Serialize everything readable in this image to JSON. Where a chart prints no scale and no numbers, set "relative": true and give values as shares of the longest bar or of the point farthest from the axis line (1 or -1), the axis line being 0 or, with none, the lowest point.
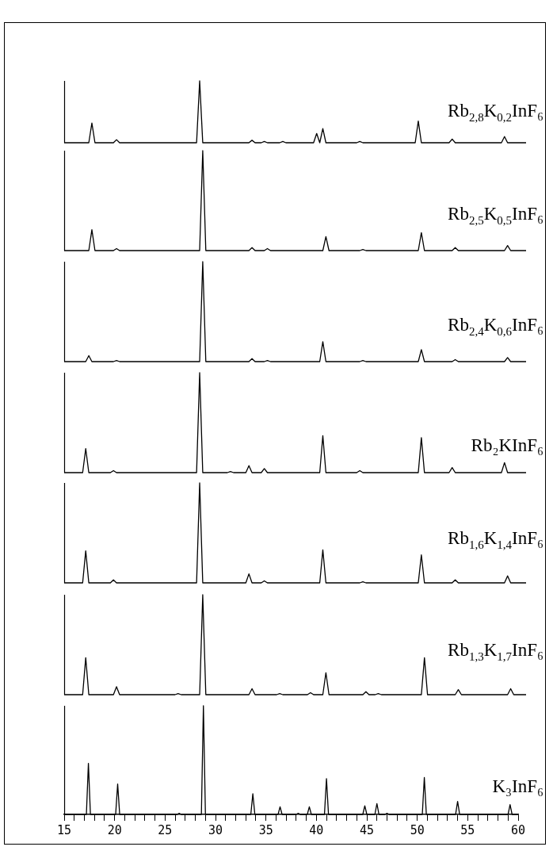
{
  "chart_data": [
    {
      "type": "line",
      "title": "Rb$_{2,8}$K$_{0,2}$InF₆",
      "relative": true,
      "color": "#000000",
      "tick_labels": false,
      "categories": [
        null,
        null,
        null,
        null,
        null,
        null,
        null,
        null,
        null,
        null,
        null,
        null,
        null,
        null,
        null,
        null,
        null,
        null,
        null,
        null,
        null,
        null,
        null,
        null,
        null,
        null,
        null,
        null,
        null,
        null,
        null,
        null,
        null,
        null,
        null,
        null,
        null,
        null,
        null,
        null,
        null,
        null,
        null,
        null,
        null,
        null,
        null,
        null,
        null,
        null,
        null,
        null,
        null,
        null,
        null,
        null,
        null,
        null,
        null,
        null,
        null,
        null,
        null,
        null,
        null,
        null,
        null,
        null,
        null,
        null,
        null,
        null,
        null,
        null,
        null,
        null,
        null,
        null,
        null,
        null,
        null,
        null,
        null,
        null,
        null,
        null,
        null,
        null,
        null,
        null,
        null,
        null,
        null,
        null,
        null,
        null,
        null,
        null,
        null,
        null,
        null,
        null,
        null,
        null,
        null,
        null,
        null,
        null,
        null,
        null,
        null,
        null,
        null,
        null,
        null,
        null,
        null,
        null,
        null,
        null,
        null,
        null,
        null,
        null,
        null,
        null,
        null,
        null,
        null,
        null,
        null,
        null,
        null,
        null,
        null,
        null,
        null,
        null,
        null,
        null,
        null,
        null,
        null,
        null,
        null,
        null,
        null,
        null,
        null,
        null,
        null
      ],
      "values": [
        0,
        0,
        0,
        0,
        0,
        0,
        0,
        0,
        0,
        0.32,
        0,
        0,
        0,
        0,
        0,
        0,
        0,
        0.05,
        0,
        0,
        0,
        0,
        0,
        0,
        0,
        0,
        0,
        0,
        0,
        0,
        0,
        0,
        0,
        0,
        0,
        0,
        0,
        0,
        0,
        0,
        0,
        0,
        0,
        0,
        1,
        0,
        0,
        0,
        0,
        0,
        0,
        0,
        0,
        0,
        0,
        0,
        0,
        0,
        0,
        0,
        0,
        0.04,
        0,
        0,
        0,
        0.02,
        0,
        0,
        0,
        0,
        0,
        0.02,
        0,
        0,
        0,
        0,
        0,
        0,
        0,
        0,
        0,
        0,
        0.15,
        0,
        0.23,
        0,
        0,
        0,
        0,
        0,
        0,
        0,
        0,
        0,
        0,
        0,
        0.02,
        0,
        0,
        0,
        0,
        0,
        0,
        0,
        0,
        0,
        0,
        0,
        0,
        0,
        0,
        0,
        0,
        0,
        0,
        0.35,
        0,
        0,
        0,
        0,
        0,
        0,
        0,
        0,
        0,
        0,
        0.06,
        0,
        0,
        0,
        0,
        0,
        0,
        0,
        0,
        0,
        0,
        0,
        0,
        0,
        0,
        0,
        0,
        0.1,
        0,
        0,
        0,
        0,
        0,
        0,
        0
      ]
    },
    {
      "type": "line",
      "title": "Rb$_{2,5}$K$_{0,5}$InF₆",
      "relative": true,
      "color": "#000000",
      "tick_labels": false,
      "categories": [
        null,
        null,
        null,
        null,
        null,
        null,
        null,
        null,
        null,
        null,
        null,
        null,
        null,
        null,
        null,
        null,
        null,
        null,
        null,
        null,
        null,
        null,
        null,
        null,
        null,
        null,
        null,
        null,
        null,
        null,
        null,
        null,
        null,
        null,
        null,
        null,
        null,
        null,
        null,
        null,
        null,
        null,
        null,
        null,
        null,
        null,
        null,
        null,
        null,
        null,
        null,
        null,
        null,
        null,
        null,
        null,
        null,
        null,
        null,
        null,
        null,
        null,
        null,
        null,
        null,
        null,
        null,
        null,
        null,
        null,
        null,
        null,
        null,
        null,
        null,
        null,
        null,
        null,
        null,
        null,
        null,
        null,
        null,
        null,
        null,
        null,
        null,
        null,
        null,
        null,
        null,
        null,
        null,
        null,
        null,
        null,
        null,
        null,
        null,
        null,
        null,
        null,
        null,
        null,
        null,
        null,
        null,
        null,
        null,
        null,
        null,
        null,
        null,
        null,
        null,
        null,
        null,
        null,
        null,
        null,
        null,
        null,
        null,
        null,
        null,
        null,
        null,
        null,
        null,
        null,
        null,
        null,
        null,
        null,
        null,
        null,
        null,
        null,
        null,
        null,
        null,
        null,
        null,
        null,
        null,
        null,
        null,
        null,
        null,
        null,
        null
      ],
      "values": [
        0,
        0,
        0,
        0,
        0,
        0,
        0,
        0,
        0,
        0.21,
        0,
        0,
        0,
        0,
        0,
        0,
        0,
        0.02,
        0,
        0,
        0,
        0,
        0,
        0,
        0,
        0,
        0,
        0,
        0,
        0,
        0,
        0,
        0,
        0,
        0,
        0,
        0,
        0,
        0,
        0,
        0,
        0,
        0,
        0,
        0,
        1,
        0,
        0,
        0,
        0,
        0,
        0,
        0,
        0,
        0,
        0,
        0,
        0,
        0,
        0,
        0,
        0.03,
        0,
        0,
        0,
        0,
        0.02,
        0,
        0,
        0,
        0,
        0,
        0,
        0,
        0,
        0,
        0,
        0,
        0,
        0,
        0,
        0,
        0,
        0,
        0,
        0.14,
        0,
        0,
        0,
        0,
        0,
        0,
        0,
        0,
        0,
        0,
        0,
        0.01,
        0,
        0,
        0,
        0,
        0,
        0,
        0,
        0,
        0,
        0,
        0,
        0,
        0,
        0,
        0,
        0,
        0,
        0,
        0.18,
        0,
        0,
        0,
        0,
        0,
        0,
        0,
        0,
        0,
        0,
        0.03,
        0,
        0,
        0,
        0,
        0,
        0,
        0,
        0,
        0,
        0,
        0,
        0,
        0,
        0,
        0,
        0,
        0.05,
        0,
        0,
        0,
        0,
        0,
        0
      ]
    },
    {
      "type": "line",
      "title": "Rb$_{2,4}$K$_{0,6}$InF₆",
      "relative": true,
      "color": "#000000",
      "tick_labels": false,
      "categories": [
        null,
        null,
        null,
        null,
        null,
        null,
        null,
        null,
        null,
        null,
        null,
        null,
        null,
        null,
        null,
        null,
        null,
        null,
        null,
        null,
        null,
        null,
        null,
        null,
        null,
        null,
        null,
        null,
        null,
        null,
        null,
        null,
        null,
        null,
        null,
        null,
        null,
        null,
        null,
        null,
        null,
        null,
        null,
        null,
        null,
        null,
        null,
        null,
        null,
        null,
        null,
        null,
        null,
        null,
        null,
        null,
        null,
        null,
        null,
        null,
        null,
        null,
        null,
        null,
        null,
        null,
        null,
        null,
        null,
        null,
        null,
        null,
        null,
        null,
        null,
        null,
        null,
        null,
        null,
        null,
        null,
        null,
        null,
        null,
        null,
        null,
        null,
        null,
        null,
        null,
        null,
        null,
        null,
        null,
        null,
        null,
        null,
        null,
        null,
        null,
        null,
        null,
        null,
        null,
        null,
        null,
        null,
        null,
        null,
        null,
        null,
        null,
        null,
        null,
        null,
        null,
        null,
        null,
        null,
        null,
        null,
        null,
        null,
        null,
        null,
        null,
        null,
        null,
        null,
        null,
        null,
        null,
        null,
        null,
        null,
        null,
        null,
        null,
        null,
        null,
        null,
        null,
        null,
        null,
        null,
        null,
        null,
        null,
        null,
        null,
        null
      ],
      "values": [
        0,
        0,
        0,
        0,
        0,
        0,
        0,
        0,
        0.06,
        0,
        0,
        0,
        0,
        0,
        0,
        0,
        0,
        0.01,
        0,
        0,
        0,
        0,
        0,
        0,
        0,
        0,
        0,
        0,
        0,
        0,
        0,
        0,
        0,
        0,
        0,
        0,
        0,
        0,
        0,
        0,
        0,
        0,
        0,
        0,
        0,
        1,
        0,
        0,
        0,
        0,
        0,
        0,
        0,
        0,
        0,
        0,
        0,
        0,
        0,
        0,
        0,
        0.03,
        0,
        0,
        0,
        0,
        0.01,
        0,
        0,
        0,
        0,
        0,
        0,
        0,
        0,
        0,
        0,
        0,
        0,
        0,
        0,
        0,
        0,
        0,
        0.2,
        0,
        0,
        0,
        0,
        0,
        0,
        0,
        0,
        0,
        0,
        0,
        0,
        0.01,
        0,
        0,
        0,
        0,
        0,
        0,
        0,
        0,
        0,
        0,
        0,
        0,
        0,
        0,
        0,
        0,
        0,
        0,
        0.12,
        0,
        0,
        0,
        0,
        0,
        0,
        0,
        0,
        0,
        0,
        0.02,
        0,
        0,
        0,
        0,
        0,
        0,
        0,
        0,
        0,
        0,
        0,
        0,
        0,
        0,
        0,
        0,
        0.04,
        0,
        0,
        0,
        0,
        0,
        0
      ]
    },
    {
      "type": "line",
      "title": "Rb₂KInF₆",
      "relative": true,
      "color": "#000000",
      "tick_labels": false,
      "categories": [
        null,
        null,
        null,
        null,
        null,
        null,
        null,
        null,
        null,
        null,
        null,
        null,
        null,
        null,
        null,
        null,
        null,
        null,
        null,
        null,
        null,
        null,
        null,
        null,
        null,
        null,
        null,
        null,
        null,
        null,
        null,
        null,
        null,
        null,
        null,
        null,
        null,
        null,
        null,
        null,
        null,
        null,
        null,
        null,
        null,
        null,
        null,
        null,
        null,
        null,
        null,
        null,
        null,
        null,
        null,
        null,
        null,
        null,
        null,
        null,
        null,
        null,
        null,
        null,
        null,
        null,
        null,
        null,
        null,
        null,
        null,
        null,
        null,
        null,
        null,
        null,
        null,
        null,
        null,
        null,
        null,
        null,
        null,
        null,
        null,
        null,
        null,
        null,
        null,
        null,
        null,
        null,
        null,
        null,
        null,
        null,
        null,
        null,
        null,
        null,
        null,
        null,
        null,
        null,
        null,
        null,
        null,
        null,
        null,
        null,
        null,
        null,
        null,
        null,
        null,
        null,
        null,
        null,
        null,
        null,
        null,
        null,
        null,
        null,
        null,
        null,
        null,
        null,
        null,
        null,
        null,
        null,
        null,
        null,
        null,
        null,
        null,
        null,
        null,
        null,
        null,
        null,
        null,
        null,
        null,
        null,
        null,
        null,
        null,
        null,
        null
      ],
      "values": [
        0,
        0,
        0,
        0,
        0,
        0,
        0,
        0.24,
        0,
        0,
        0,
        0,
        0,
        0,
        0,
        0,
        0.02,
        0,
        0,
        0,
        0,
        0,
        0,
        0,
        0,
        0,
        0,
        0,
        0,
        0,
        0,
        0,
        0,
        0,
        0,
        0,
        0,
        0,
        0,
        0,
        0,
        0,
        0,
        0,
        1,
        0,
        0,
        0,
        0,
        0,
        0,
        0,
        0,
        0,
        0.01,
        0,
        0,
        0,
        0,
        0,
        0.07,
        0,
        0,
        0,
        0,
        0.04,
        0,
        0,
        0,
        0,
        0,
        0,
        0,
        0,
        0,
        0,
        0,
        0,
        0,
        0,
        0,
        0,
        0,
        0,
        0.37,
        0,
        0,
        0,
        0,
        0,
        0,
        0,
        0,
        0,
        0,
        0,
        0.02,
        0,
        0,
        0,
        0,
        0,
        0,
        0,
        0,
        0,
        0,
        0,
        0,
        0,
        0,
        0,
        0,
        0,
        0,
        0,
        0.35,
        0,
        0,
        0,
        0,
        0,
        0,
        0,
        0,
        0,
        0.05,
        0,
        0,
        0,
        0,
        0,
        0,
        0,
        0,
        0,
        0,
        0,
        0,
        0,
        0,
        0,
        0,
        0.1,
        0,
        0,
        0,
        0,
        0,
        0,
        0
      ]
    },
    {
      "type": "line",
      "title": "Rb$_{1,6}$K$_{1,4}$InF₆",
      "relative": true,
      "color": "#000000",
      "tick_labels": false,
      "categories": [
        null,
        null,
        null,
        null,
        null,
        null,
        null,
        null,
        null,
        null,
        null,
        null,
        null,
        null,
        null,
        null,
        null,
        null,
        null,
        null,
        null,
        null,
        null,
        null,
        null,
        null,
        null,
        null,
        null,
        null,
        null,
        null,
        null,
        null,
        null,
        null,
        null,
        null,
        null,
        null,
        null,
        null,
        null,
        null,
        null,
        null,
        null,
        null,
        null,
        null,
        null,
        null,
        null,
        null,
        null,
        null,
        null,
        null,
        null,
        null,
        null,
        null,
        null,
        null,
        null,
        null,
        null,
        null,
        null,
        null,
        null,
        null,
        null,
        null,
        null,
        null,
        null,
        null,
        null,
        null,
        null,
        null,
        null,
        null,
        null,
        null,
        null,
        null,
        null,
        null,
        null,
        null,
        null,
        null,
        null,
        null,
        null,
        null,
        null,
        null,
        null,
        null,
        null,
        null,
        null,
        null,
        null,
        null,
        null,
        null,
        null,
        null,
        null,
        null,
        null,
        null,
        null,
        null,
        null,
        null,
        null,
        null,
        null,
        null,
        null,
        null,
        null,
        null,
        null,
        null,
        null,
        null,
        null,
        null,
        null,
        null,
        null,
        null,
        null,
        null,
        null,
        null,
        null,
        null,
        null,
        null,
        null,
        null,
        null,
        null,
        null
      ],
      "values": [
        0,
        0,
        0,
        0,
        0,
        0,
        0,
        0.32,
        0,
        0,
        0,
        0,
        0,
        0,
        0,
        0,
        0.03,
        0,
        0,
        0,
        0,
        0,
        0,
        0,
        0,
        0,
        0,
        0,
        0,
        0,
        0,
        0,
        0,
        0,
        0,
        0,
        0,
        0,
        0,
        0,
        0,
        0,
        0,
        0,
        1,
        0,
        0,
        0,
        0,
        0,
        0,
        0,
        0,
        0,
        0,
        0,
        0,
        0,
        0,
        0,
        0.09,
        0,
        0,
        0,
        0,
        0.02,
        0,
        0,
        0,
        0,
        0,
        0,
        0,
        0,
        0,
        0,
        0,
        0,
        0,
        0,
        0,
        0,
        0,
        0,
        0.33,
        0,
        0,
        0,
        0,
        0,
        0,
        0,
        0,
        0,
        0,
        0,
        0,
        0.01,
        0,
        0,
        0,
        0,
        0,
        0,
        0,
        0,
        0,
        0,
        0,
        0,
        0,
        0,
        0,
        0,
        0,
        0,
        0.28,
        0,
        0,
        0,
        0,
        0,
        0,
        0,
        0,
        0,
        0,
        0.03,
        0,
        0,
        0,
        0,
        0,
        0,
        0,
        0,
        0,
        0,
        0,
        0,
        0,
        0,
        0,
        0,
        0.07,
        0,
        0,
        0,
        0,
        0,
        0
      ]
    },
    {
      "type": "line",
      "title": "Rb$_{1,3}$K$_{1,7}$InF₆",
      "relative": true,
      "color": "#000000",
      "tick_labels": false,
      "categories": [
        null,
        null,
        null,
        null,
        null,
        null,
        null,
        null,
        null,
        null,
        null,
        null,
        null,
        null,
        null,
        null,
        null,
        null,
        null,
        null,
        null,
        null,
        null,
        null,
        null,
        null,
        null,
        null,
        null,
        null,
        null,
        null,
        null,
        null,
        null,
        null,
        null,
        null,
        null,
        null,
        null,
        null,
        null,
        null,
        null,
        null,
        null,
        null,
        null,
        null,
        null,
        null,
        null,
        null,
        null,
        null,
        null,
        null,
        null,
        null,
        null,
        null,
        null,
        null,
        null,
        null,
        null,
        null,
        null,
        null,
        null,
        null,
        null,
        null,
        null,
        null,
        null,
        null,
        null,
        null,
        null,
        null,
        null,
        null,
        null,
        null,
        null,
        null,
        null,
        null,
        null,
        null,
        null,
        null,
        null,
        null,
        null,
        null,
        null,
        null,
        null,
        null,
        null,
        null,
        null,
        null,
        null,
        null,
        null,
        null,
        null,
        null,
        null,
        null,
        null,
        null,
        null,
        null,
        null,
        null,
        null,
        null,
        null,
        null,
        null,
        null,
        null,
        null,
        null,
        null,
        null,
        null,
        null,
        null,
        null,
        null,
        null,
        null,
        null,
        null,
        null,
        null,
        null,
        null,
        null,
        null,
        null,
        null,
        null,
        null,
        null
      ],
      "values": [
        0,
        0,
        0,
        0,
        0,
        0,
        0,
        0.37,
        0,
        0,
        0,
        0,
        0,
        0,
        0,
        0,
        0,
        0.08,
        0,
        0,
        0,
        0,
        0,
        0,
        0,
        0,
        0,
        0,
        0,
        0,
        0,
        0,
        0,
        0,
        0,
        0,
        0,
        0.01,
        0,
        0,
        0,
        0,
        0,
        0,
        0,
        1,
        0,
        0,
        0,
        0,
        0,
        0,
        0,
        0,
        0,
        0,
        0,
        0,
        0,
        0,
        0,
        0.06,
        0,
        0,
        0,
        0,
        0,
        0,
        0,
        0,
        0.01,
        0,
        0,
        0,
        0,
        0,
        0,
        0,
        0,
        0,
        0.02,
        0,
        0,
        0,
        0,
        0.22,
        0,
        0,
        0,
        0,
        0,
        0,
        0,
        0,
        0,
        0,
        0,
        0,
        0.03,
        0,
        0,
        0,
        0.01,
        0,
        0,
        0,
        0,
        0,
        0,
        0,
        0,
        0,
        0,
        0,
        0,
        0,
        0,
        0.37,
        0,
        0,
        0,
        0,
        0,
        0,
        0,
        0,
        0,
        0,
        0.05,
        0,
        0,
        0,
        0,
        0,
        0,
        0,
        0,
        0,
        0,
        0,
        0,
        0,
        0,
        0,
        0,
        0.06,
        0,
        0,
        0,
        0,
        0
      ]
    },
    {
      "type": "line",
      "title": "K₃InF₆",
      "relative": true,
      "color": "#000000",
      "xlim": [
        15,
        60
      ],
      "tick_labels": "x",
      "xticks": [
        15,
        {
          "value": 16,
          "label": null
        },
        {
          "value": 17,
          "label": null
        },
        {
          "value": 18,
          "label": null
        },
        {
          "value": 19,
          "label": null
        },
        20,
        {
          "value": 21,
          "label": null
        },
        {
          "value": 22,
          "label": null
        },
        {
          "value": 23,
          "label": null
        },
        {
          "value": 24,
          "label": null
        },
        25,
        {
          "value": 26,
          "label": null
        },
        {
          "value": 27,
          "label": null
        },
        {
          "value": 28,
          "label": null
        },
        {
          "value": 29,
          "label": null
        },
        30,
        {
          "value": 31,
          "label": null
        },
        {
          "value": 32,
          "label": null
        },
        {
          "value": 33,
          "label": null
        },
        {
          "value": 34,
          "label": null
        },
        35,
        {
          "value": 36,
          "label": null
        },
        {
          "value": 37,
          "label": null
        },
        {
          "value": 38,
          "label": null
        },
        {
          "value": 39,
          "label": null
        },
        40,
        {
          "value": 41,
          "label": null
        },
        {
          "value": 42,
          "label": null
        },
        {
          "value": 43,
          "label": null
        },
        {
          "value": 44,
          "label": null
        },
        45,
        {
          "value": 46,
          "label": null
        },
        {
          "value": 47,
          "label": null
        },
        {
          "value": 48,
          "label": null
        },
        {
          "value": 49,
          "label": null
        },
        50,
        {
          "value": 51,
          "label": null
        },
        {
          "value": 52,
          "label": null
        },
        {
          "value": 53,
          "label": null
        },
        {
          "value": 54,
          "label": null
        },
        55,
        {
          "value": 56,
          "label": null
        },
        {
          "value": 57,
          "label": null
        },
        {
          "value": 58,
          "label": null
        },
        {
          "value": 59,
          "label": null
        },
        60
      ],
      "x": [
        15,
        17.2,
        17.4,
        17.6,
        20.1,
        20.3,
        20.5,
        26.2,
        26.4,
        26.6,
        28.6,
        28.8,
        29,
        33.5,
        33.7,
        33.9,
        36.2,
        36.4,
        36.6,
        38,
        38.2,
        38.4,
        39.1,
        39.3,
        39.5,
        40.8,
        41,
        41.2,
        44.6,
        44.8,
        45,
        45.8,
        46,
        46.2,
        46.8,
        47,
        47.2,
        50.5,
        50.7,
        50.9,
        53.8,
        54,
        54.2,
        59,
        59.2,
        59.4,
        60
      ],
      "values": [
        0,
        0,
        0.47,
        0,
        0,
        0.28,
        0,
        0,
        0.01,
        0,
        0,
        1,
        0,
        0,
        0.19,
        0,
        0,
        0.07,
        0,
        0,
        0.01,
        0,
        0,
        0.07,
        0,
        0,
        0.33,
        0,
        0,
        0.08,
        0,
        0,
        0.1,
        0,
        0,
        0.01,
        0,
        0,
        0.34,
        0,
        0,
        0.12,
        0,
        0,
        0.09,
        0,
        0
      ]
    }
  ]
}
